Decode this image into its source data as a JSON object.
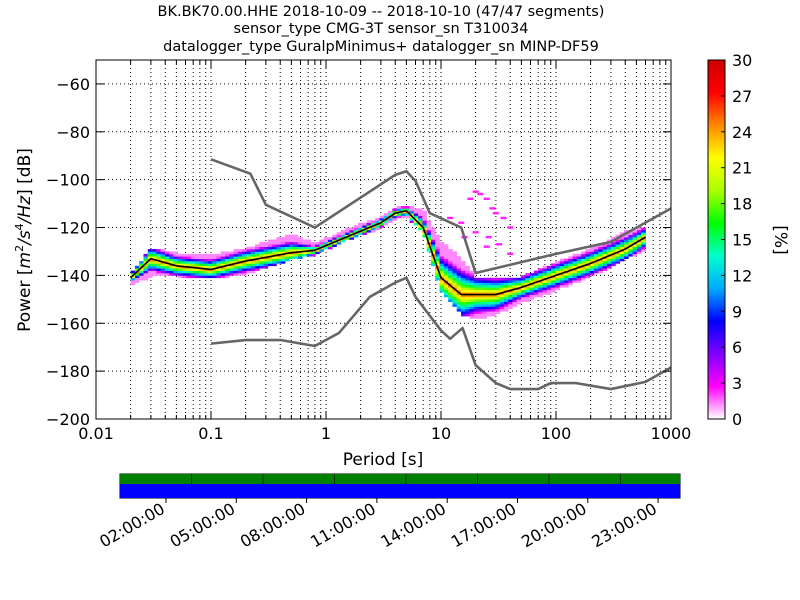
{
  "title_lines": [
    "BK.BK70.00.HHE   2018-10-09 -- 2018-10-10  (47/47 segments)",
    "sensor_type CMG-3T sensor_sn T310034",
    "datalogger_type GuralpMinimus+ datalogger_sn MINP-DF59"
  ],
  "chart_data": {
    "type": "heatmap",
    "xlabel": "Period [s]",
    "ylabel": "Power [m²/s⁴/Hz] [dB]",
    "ylabel_parts": {
      "pre": "Power [",
      "m": "m",
      "two": "2",
      "slash1": "/",
      "s": "s",
      "four": "4",
      "slash2": "/",
      "Hz": "Hz",
      "post": "] [dB]"
    },
    "xscale": "log",
    "xlim": [
      0.01,
      1000
    ],
    "ylim": [
      -200,
      -50
    ],
    "x_ticks": [
      0.01,
      0.1,
      1,
      10,
      100,
      1000
    ],
    "x_tick_labels": [
      "0.01",
      "0.1",
      "1",
      "10",
      "100",
      "1000"
    ],
    "y_ticks": [
      -200,
      -180,
      -160,
      -140,
      -120,
      -100,
      -80,
      -60
    ],
    "y_tick_labels": [
      "−200",
      "−180",
      "−160",
      "−140",
      "−120",
      "−100",
      "−80",
      "−60"
    ],
    "grid": true,
    "colorbar": {
      "label": "[%]",
      "range": [
        0,
        30
      ],
      "ticks": [
        0,
        3,
        6,
        9,
        12,
        15,
        18,
        21,
        24,
        27,
        30
      ],
      "tick_labels": [
        "0",
        "3",
        "6",
        "9",
        "12",
        "15",
        "18",
        "21",
        "24",
        "27",
        "30"
      ],
      "colors": [
        "#ffffff",
        "#ff00ff",
        "#8000ff",
        "#0000ff",
        "#00aaff",
        "#00ffcc",
        "#00ff00",
        "#aaff00",
        "#ffff00",
        "#ff8800",
        "#ff0000",
        "#cc0000"
      ]
    },
    "series": [
      {
        "name": "",
        "color": "#666666",
        "x": [
          0.1,
          0.22,
          0.3,
          0.8,
          4,
          5,
          6,
          8,
          15,
          20,
          100,
          300,
          1000
        ],
        "y": [
          -91.5,
          -97.5,
          -110.5,
          -120,
          -98,
          -96.5,
          -100.5,
          -114,
          -120,
          -139,
          -131,
          -126,
          -112
        ]
      },
      {
        "name": "",
        "color": "#666666",
        "x": [
          0.1,
          0.2,
          0.4,
          0.8,
          1.3,
          2.4,
          4,
          5,
          6,
          10,
          12,
          15.4,
          20,
          30,
          40,
          70,
          90,
          150,
          300,
          600,
          1000
        ],
        "y": [
          -168.5,
          -167,
          -167,
          -169.5,
          -164,
          -149,
          -143,
          -141,
          -149,
          -163,
          -166.5,
          -162,
          -177.5,
          -185,
          -187.5,
          -187.5,
          -185,
          -185,
          -187.5,
          -184.5,
          -178.5
        ]
      },
      {
        "name": "",
        "color": "#000000",
        "x": [
          0.02,
          0.03,
          0.05,
          0.1,
          0.2,
          0.5,
          0.8,
          1.5,
          3,
          4,
          5,
          7,
          10,
          15,
          20,
          30,
          50,
          100,
          200,
          400,
          600
        ],
        "y": [
          -141,
          -133,
          -136,
          -137.5,
          -134,
          -130.5,
          -129.5,
          -124,
          -118,
          -114,
          -113,
          -120,
          -141,
          -148,
          -148,
          -148,
          -145,
          -140,
          -135,
          -129,
          -124
        ]
      }
    ],
    "density_band": {
      "x": [
        0.02,
        0.03,
        0.05,
        0.1,
        0.2,
        0.5,
        0.8,
        1.5,
        3,
        4,
        5,
        7,
        10,
        15,
        20,
        30,
        50,
        100,
        200,
        400,
        600
      ],
      "y_low": [
        -144,
        -140,
        -140,
        -141,
        -139,
        -133,
        -131,
        -125,
        -120,
        -116,
        -115,
        -122,
        -146,
        -156,
        -158,
        -156,
        -151,
        -146,
        -140,
        -133,
        -129
      ],
      "y_high": [
        -140,
        -129,
        -131,
        -132,
        -129,
        -123,
        -127,
        -121,
        -116,
        -112,
        -111,
        -113,
        -126,
        -133,
        -141,
        -141,
        -141,
        -135,
        -129,
        -122,
        -120
      ],
      "outliers": [
        [
          12,
          -116
        ],
        [
          15,
          -118
        ],
        [
          18,
          -108
        ],
        [
          20,
          -105
        ],
        [
          22,
          -106
        ],
        [
          25,
          -108
        ],
        [
          28,
          -112
        ],
        [
          30,
          -114
        ],
        [
          35,
          -116
        ],
        [
          40,
          -120
        ],
        [
          16,
          -124
        ],
        [
          20,
          -122
        ],
        [
          26,
          -124
        ],
        [
          32,
          -127
        ],
        [
          25,
          -128
        ],
        [
          40,
          -131
        ]
      ]
    },
    "availability": {
      "time_labels": [
        "02:00:00",
        "05:00:00",
        "08:00:00",
        "11:00:00",
        "14:00:00",
        "17:00:00",
        "20:00:00",
        "23:00:00"
      ],
      "segments": 47,
      "top_color": "#008000",
      "bottom_color": "#0000ff"
    }
  }
}
